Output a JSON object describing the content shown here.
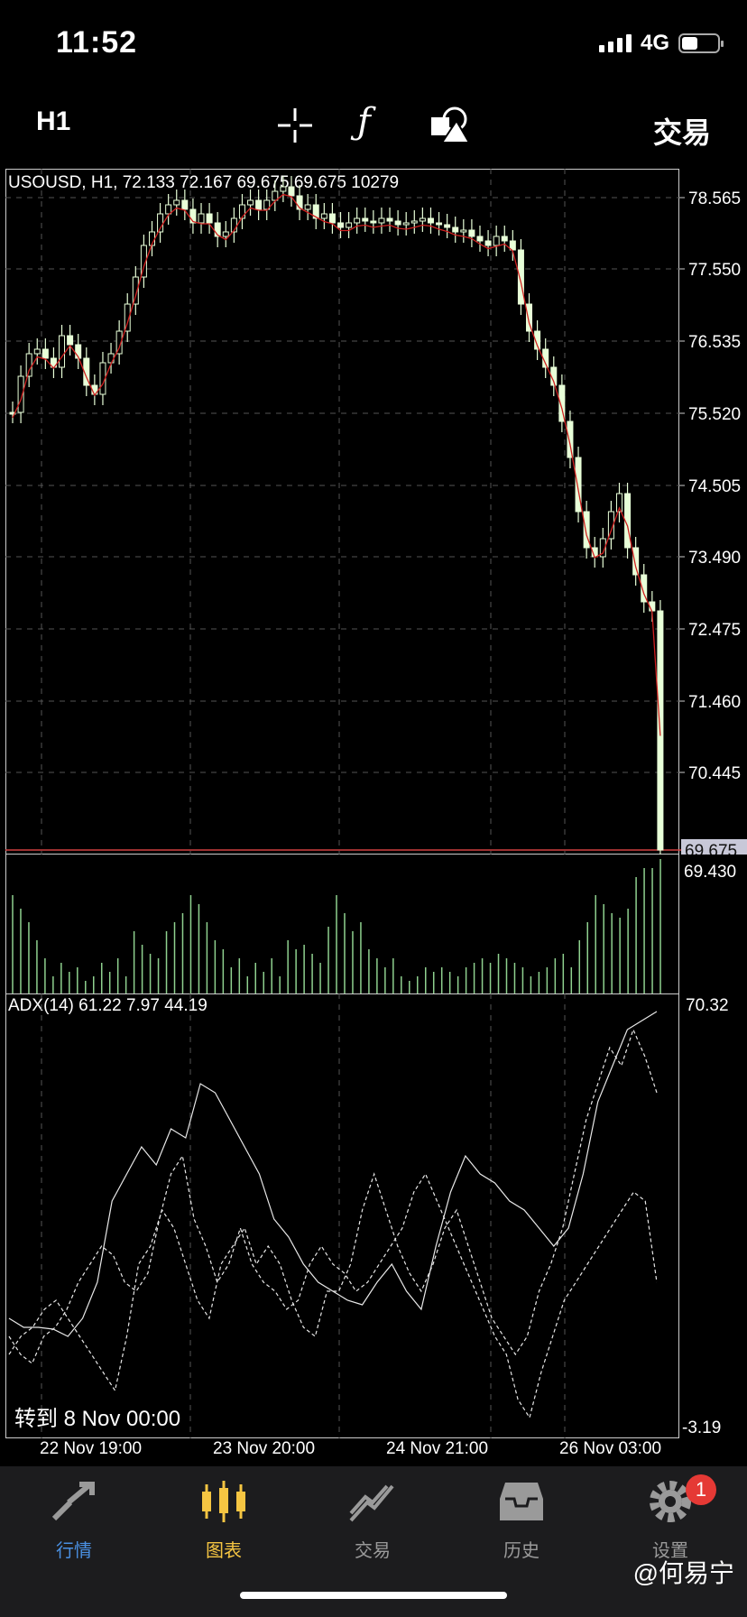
{
  "status_bar": {
    "time": "11:52",
    "network": "4G",
    "battery_level": 0.45
  },
  "toolbar": {
    "timeframe": "H1",
    "icons": [
      "crosshair-icon",
      "function-icon",
      "objects-icon"
    ],
    "trade_label": "交易"
  },
  "chart": {
    "info_line": "USOUSD, H1, 72.133 72.167 69.675 69.675 10279",
    "price_axis": [
      "78.565",
      "77.550",
      "76.535",
      "75.520",
      "74.505",
      "73.490",
      "72.475",
      "71.460",
      "70.445"
    ],
    "current_price": "69.675",
    "volume_top_label": "69.430",
    "adx_info": "ADX(14) 61.22 7.97 44.19",
    "adx_max": "70.32",
    "adx_min": "-3.19",
    "goto_label": "转到 8 Nov 00:00",
    "x_labels": [
      "22 Nov 19:00",
      "23 Nov 20:00",
      "24 Nov 21:00",
      "26 Nov 03:00"
    ],
    "colors": {
      "bull": "#e8ffd8",
      "bear": "#e8ffd8",
      "ma": "#d02020",
      "volume": "#8fd18f",
      "grid": "#555555"
    }
  },
  "bottom_nav": {
    "items": [
      {
        "label": "行情",
        "icon": "quotes-icon",
        "color": "#4a90e2"
      },
      {
        "label": "图表",
        "icon": "chart-icon",
        "color": "#f5c542"
      },
      {
        "label": "交易",
        "icon": "trade-icon",
        "color": "#9a9a9a"
      },
      {
        "label": "历史",
        "icon": "history-icon",
        "color": "#9a9a9a"
      },
      {
        "label": "设置",
        "icon": "settings-icon",
        "color": "#9a9a9a"
      }
    ],
    "settings_badge": "1"
  },
  "watermark": "@何易宁"
}
